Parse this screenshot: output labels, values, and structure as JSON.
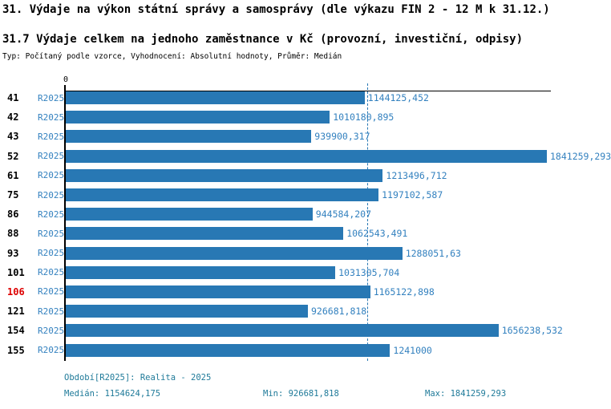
{
  "title": "31. Výdaje na výkon státní správy a samosprávy (dle výkazu FIN 2 - 12 M k 31.12.)",
  "subtitle": "31.7 Výdaje celkem na jednoho zaměstnance v Kč (provozní, investiční, odpisy)",
  "meta_line": "Typ: Počítaný podle vzorce, Vyhodnocení: Absolutní hodnoty, Průměr: Medián",
  "axis": {
    "origin_label": "0"
  },
  "chart_data": {
    "type": "bar",
    "orientation": "horizontal",
    "title": "31.7 Výdaje celkem na jednoho zaměstnance v Kč (provozní, investiční, odpisy)",
    "series_name": "R2025",
    "categories": [
      "41",
      "42",
      "43",
      "52",
      "61",
      "75",
      "86",
      "88",
      "93",
      "101",
      "106",
      "121",
      "154",
      "155"
    ],
    "values": [
      1144125.452,
      1010180.895,
      939900.317,
      1841259.293,
      1213496.712,
      1197102.587,
      944584.207,
      1062543.491,
      1288051.63,
      1031305.704,
      1165122.898,
      926681.818,
      1656238.532,
      1241000
    ],
    "value_labels": [
      "1144125,452",
      "1010180,895",
      "939900,317",
      "1841259,293",
      "1213496,712",
      "1197102,587",
      "944584,207",
      "1062543,491",
      "1288051,63",
      "1031305,704",
      "1165122,898",
      "926681,818",
      "1656238,532",
      "1241000"
    ],
    "highlighted_category": "106",
    "median": 1154624.175,
    "min": 926681.818,
    "max": 1841259.293,
    "xlim": [
      0,
      1880000
    ],
    "grid": false,
    "legend": false,
    "median_line": true
  },
  "footer": {
    "period_label": "Období[R2025]: Realita - 2025",
    "median_label": "Medián: 1154624,175",
    "min_label": "Min: 926681,818",
    "max_label": "Max: 1841259,293"
  },
  "colors": {
    "bar": "#2878b4",
    "series_text": "#3381bf",
    "category_text": "#000000",
    "highlight": "#dd0000",
    "median_line": "#2878b4",
    "footer_text": "#1f7a99"
  }
}
